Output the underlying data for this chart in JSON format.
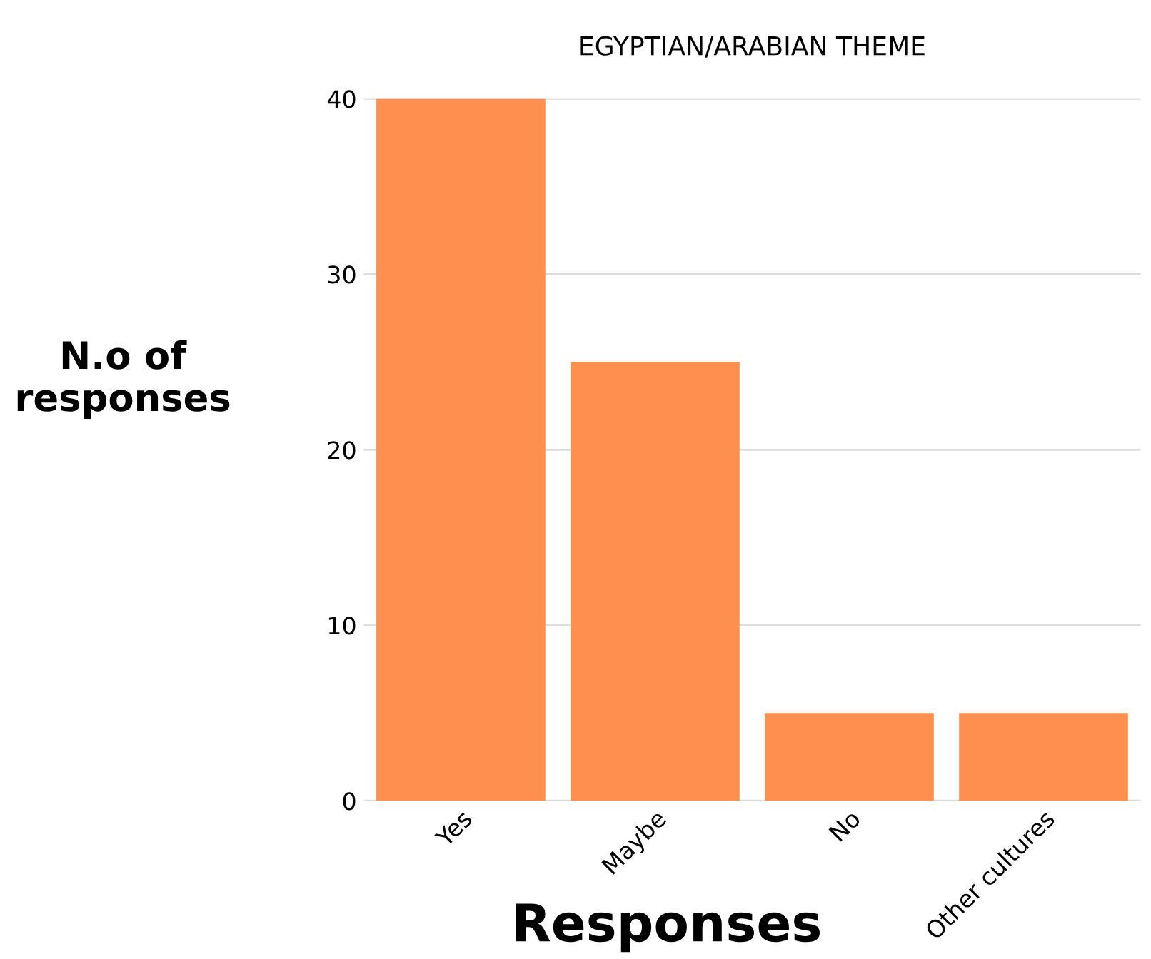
{
  "chart_data": {
    "type": "bar",
    "title": "EGYPTIAN/ARABIAN THEME",
    "xlabel": "Responses",
    "ylabel": "N.o of\nresponses",
    "categories": [
      "Yes",
      "Maybe",
      "No",
      "Other cultures"
    ],
    "values": [
      40,
      25,
      5,
      5
    ],
    "color": "#ff8f4f",
    "ylim": [
      0,
      40
    ],
    "yticks": [
      0,
      10,
      20,
      30,
      40
    ],
    "grid": "y"
  }
}
